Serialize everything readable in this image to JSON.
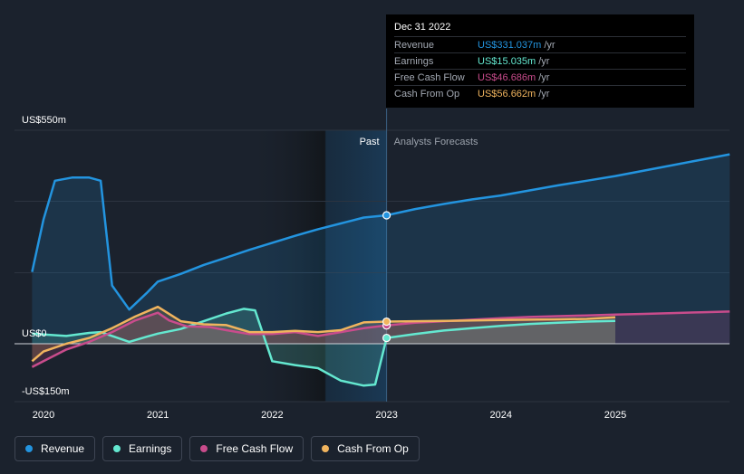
{
  "tooltip": {
    "date": "Dec 31 2022",
    "rows": [
      {
        "label": "Revenue",
        "value": "US$331.037m",
        "unit": "/yr",
        "color": "#2394df"
      },
      {
        "label": "Earnings",
        "value": "US$15.035m",
        "unit": "/yr",
        "color": "#64e8d0"
      },
      {
        "label": "Free Cash Flow",
        "value": "US$46.686m",
        "unit": "/yr",
        "color": "#c94c8c"
      },
      {
        "label": "Cash From Op",
        "value": "US$56.662m",
        "unit": "/yr",
        "color": "#f0b45e"
      }
    ]
  },
  "legend": [
    {
      "label": "Revenue",
      "color": "#2394df"
    },
    {
      "label": "Earnings",
      "color": "#64e8d0"
    },
    {
      "label": "Free Cash Flow",
      "color": "#c94c8c"
    },
    {
      "label": "Cash From Op",
      "color": "#f0b45e"
    }
  ],
  "chart_data": {
    "type": "line",
    "past_label": "Past",
    "forecast_label": "Analysts Forecasts",
    "y_tick_labels": [
      {
        "value": 550,
        "label": "US$550m"
      },
      {
        "value": 0,
        "label": "US$0"
      },
      {
        "value": -150,
        "label": "-US$150m"
      }
    ],
    "x_tick_labels": [
      "2020",
      "2021",
      "2022",
      "2023",
      "2024",
      "2025"
    ],
    "x_ticks": [
      2020,
      2021,
      2022,
      2023,
      2024,
      2025
    ],
    "xlim": [
      2019.9,
      2026.0
    ],
    "ylim": [
      -150,
      550
    ],
    "divider_x": 2023.0,
    "series": [
      {
        "name": "Revenue",
        "color": "#2394df",
        "x": [
          2019.9,
          2020.0,
          2020.1,
          2020.25,
          2020.4,
          2020.5,
          2020.6,
          2020.75,
          2020.9,
          2021.0,
          2021.2,
          2021.4,
          2021.6,
          2021.8,
          2022.0,
          2022.2,
          2022.4,
          2022.6,
          2022.8,
          2023.0,
          2023.25,
          2023.5,
          2023.75,
          2024.0,
          2024.25,
          2024.5,
          2024.75,
          2025.0,
          2025.25,
          2025.5,
          2025.75,
          2026.0
        ],
        "y": [
          185,
          320,
          420,
          428,
          428,
          420,
          150,
          88,
          130,
          160,
          180,
          203,
          222,
          242,
          260,
          278,
          295,
          310,
          325,
          331,
          347,
          360,
          372,
          382,
          395,
          408,
          420,
          432,
          446,
          460,
          474,
          488
        ]
      },
      {
        "name": "Earnings",
        "color": "#64e8d0",
        "x": [
          2019.9,
          2020.0,
          2020.2,
          2020.4,
          2020.5,
          2020.6,
          2020.75,
          2020.9,
          2021.0,
          2021.2,
          2021.4,
          2021.6,
          2021.75,
          2021.85,
          2022.0,
          2022.2,
          2022.4,
          2022.6,
          2022.8,
          2022.9,
          2023.0,
          2023.25,
          2023.5,
          2023.75,
          2024.0,
          2024.25,
          2024.5,
          2024.75,
          2025.0
        ],
        "y": [
          26,
          24,
          20,
          28,
          30,
          20,
          5,
          18,
          26,
          38,
          58,
          78,
          90,
          86,
          -45,
          -55,
          -63,
          -95,
          -108,
          -105,
          15,
          25,
          34,
          40,
          46,
          51,
          54,
          57,
          59
        ]
      },
      {
        "name": "Free Cash Flow",
        "color": "#c94c8c",
        "x": [
          2019.9,
          2020.0,
          2020.2,
          2020.4,
          2020.6,
          2020.8,
          2021.0,
          2021.1,
          2021.25,
          2021.45,
          2021.6,
          2021.8,
          2022.0,
          2022.2,
          2022.4,
          2022.6,
          2022.8,
          2023.0,
          2023.25,
          2023.5,
          2023.75,
          2024.0,
          2024.25,
          2024.5,
          2024.75,
          2025.0,
          2025.25,
          2025.5,
          2025.75,
          2026.0
        ],
        "y": [
          -60,
          -45,
          -15,
          5,
          30,
          60,
          80,
          60,
          45,
          43,
          35,
          25,
          25,
          30,
          20,
          30,
          40,
          47,
          54,
          58,
          62,
          66,
          69,
          71,
          73,
          75,
          77,
          79,
          81,
          83
        ]
      },
      {
        "name": "Cash From Op",
        "color": "#f0b45e",
        "x": [
          2019.9,
          2020.0,
          2020.2,
          2020.4,
          2020.6,
          2020.8,
          2021.0,
          2021.2,
          2021.4,
          2021.6,
          2021.8,
          2022.0,
          2022.2,
          2022.4,
          2022.6,
          2022.8,
          2023.0,
          2023.25,
          2023.5,
          2023.75,
          2024.0,
          2024.25,
          2024.5,
          2024.75,
          2025.0
        ],
        "y": [
          -45,
          -20,
          0,
          15,
          40,
          70,
          95,
          58,
          50,
          48,
          30,
          30,
          33,
          30,
          35,
          55,
          57,
          58,
          59,
          60,
          61,
          62,
          63,
          64,
          68
        ]
      }
    ],
    "tooltip_point_x": 2023.0
  }
}
